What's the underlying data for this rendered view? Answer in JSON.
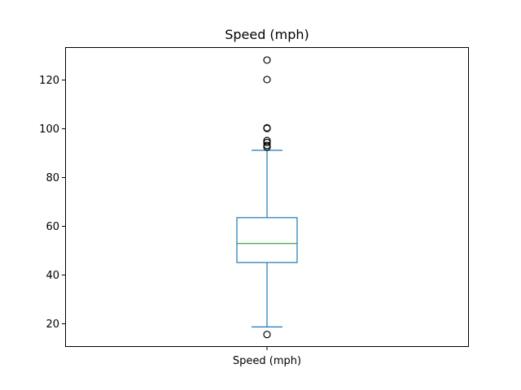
{
  "chart_data": {
    "type": "box",
    "title": "Speed (mph)",
    "xlabel": "",
    "ylabel": "",
    "categories": [
      "Speed (mph)"
    ],
    "ylim": [
      10.4,
      133.3
    ],
    "yticks": [
      20,
      40,
      60,
      80,
      100,
      120
    ],
    "grid": false,
    "box": {
      "whisker_low": 18.6,
      "q1": 45.0,
      "median": 52.8,
      "q3": 63.4,
      "whisker_high": 91.0,
      "outliers": [
        15.5,
        92.3,
        93.0,
        94.2,
        95.0,
        100.0,
        100.2,
        120.0,
        128.0
      ]
    },
    "colors": {
      "box": "#1f77b4",
      "whisker": "#1f77b4",
      "median": "#2ca02c",
      "outlier_edge": "#000000",
      "axis": "#000000"
    }
  }
}
